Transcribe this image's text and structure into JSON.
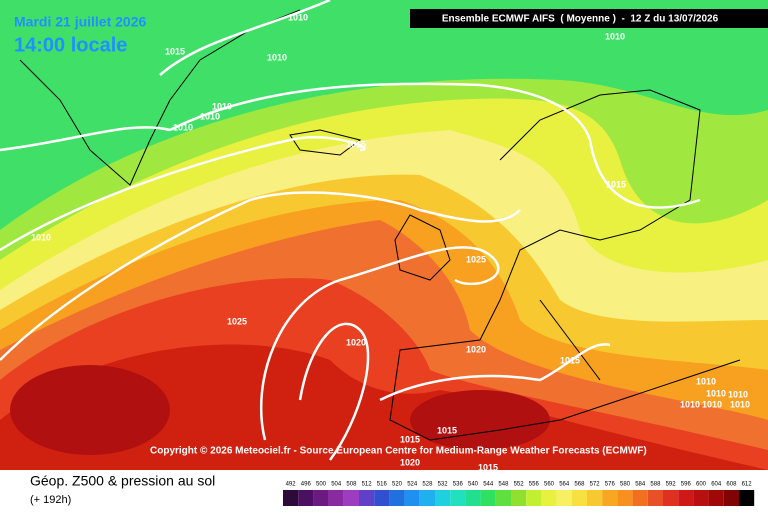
{
  "header": {
    "date": "Mardi 21 juillet 2026",
    "time": "14:00 locale",
    "model": "Ensemble ECMWF AIFS  ( Moyenne )  -  12 Z du 13/07/2026"
  },
  "isobar_labels": [
    1010,
    1015,
    1010,
    1010,
    1010,
    1010,
    1015,
    1010,
    1025,
    1025,
    1020,
    1020,
    1015,
    1010,
    1015,
    1010,
    1010,
    1010,
    1010,
    1010,
    1010,
    1015,
    1015,
    1020,
    1015
  ],
  "copyright": "Copyright © 2026 Meteociel.fr - Source European Centre for Medium-Range Weather Forecasts (ECMWF)",
  "footer": {
    "title": "Géop. Z500 & pression au sol",
    "lead": "(+ 192h)"
  },
  "scale": [
    {
      "value": 492,
      "color": "#2d0a3a"
    },
    {
      "value": 496,
      "color": "#4b1060"
    },
    {
      "value": 500,
      "color": "#6a1a80"
    },
    {
      "value": 504,
      "color": "#8a2aa0"
    },
    {
      "value": 508,
      "color": "#9e3cc0"
    },
    {
      "value": 512,
      "color": "#6040c8"
    },
    {
      "value": 516,
      "color": "#3050d0"
    },
    {
      "value": 520,
      "color": "#2070e0"
    },
    {
      "value": 524,
      "color": "#2090f0"
    },
    {
      "value": 528,
      "color": "#20b0f0"
    },
    {
      "value": 532,
      "color": "#20d0e0"
    },
    {
      "value": 536,
      "color": "#20e0c0"
    },
    {
      "value": 540,
      "color": "#20e090"
    },
    {
      "value": 544,
      "color": "#30e060"
    },
    {
      "value": 548,
      "color": "#60e040"
    },
    {
      "value": 552,
      "color": "#90e030"
    },
    {
      "value": 556,
      "color": "#c0f030"
    },
    {
      "value": 560,
      "color": "#e8f040"
    },
    {
      "value": 564,
      "color": "#f8f060"
    },
    {
      "value": 568,
      "color": "#f8e040"
    },
    {
      "value": 572,
      "color": "#f8c830"
    },
    {
      "value": 576,
      "color": "#f8a820"
    },
    {
      "value": 580,
      "color": "#f89020"
    },
    {
      "value": 584,
      "color": "#f07020"
    },
    {
      "value": 588,
      "color": "#e85028"
    },
    {
      "value": 592,
      "color": "#e03020"
    },
    {
      "value": 596,
      "color": "#d01818"
    },
    {
      "value": 600,
      "color": "#b81010"
    },
    {
      "value": 604,
      "color": "#a00808"
    },
    {
      "value": 608,
      "color": "#800404"
    },
    {
      "value": 612,
      "color": "#000000"
    }
  ]
}
